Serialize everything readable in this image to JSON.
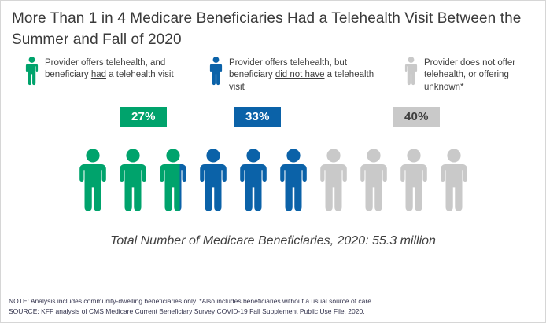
{
  "title": "More Than 1 in 4 Medicare Beneficiaries Had a Telehealth Visit Between the Summer and Fall of 2020",
  "legend": {
    "items": [
      {
        "pre": "Provider offers telehealth, and beneficiary ",
        "underlined": "had",
        "post": " a telehealth visit",
        "color": "#00a36c",
        "pct_label": "27%",
        "badge_text_color": "#ffffff"
      },
      {
        "pre": "Provider offers telehealth, but beneficiary ",
        "underlined": "did not have",
        "post": " a telehealth visit",
        "color": "#0b62a8",
        "pct_label": "33%",
        "badge_text_color": "#ffffff"
      },
      {
        "pre": "Provider does not offer telehealth, or offering unknown*",
        "underlined": "",
        "post": "",
        "color": "#c9c9c9",
        "pct_label": "40%",
        "badge_text_color": "#3f3f3f"
      }
    ]
  },
  "total_label": "Total Number of Medicare Beneficiaries, 2020: 55.3 million",
  "notes": {
    "note": "NOTE: Analysis includes community-dwelling beneficiaries only. *Also includes beneficiaries without a usual source of care.",
    "source": "SOURCE: KFF analysis of CMS Medicare Current Beneficiary Survey COVID-19 Fall Supplement Public Use File, 2020."
  },
  "chart_data": {
    "type": "pictogram",
    "title": "More Than 1 in 4 Medicare Beneficiaries Had a Telehealth Visit Between the Summer and Fall of 2020",
    "icons_total": 10,
    "percent_per_icon": 10,
    "series": [
      {
        "name": "Provider offers telehealth, and beneficiary had a telehealth visit",
        "value_pct": 27,
        "color": "#00a36c"
      },
      {
        "name": "Provider offers telehealth, but beneficiary did not have a telehealth visit",
        "value_pct": 33,
        "color": "#0b62a8"
      },
      {
        "name": "Provider does not offer telehealth, or offering unknown*",
        "value_pct": 40,
        "color": "#c9c9c9"
      }
    ],
    "total_label": "Total Number of Medicare Beneficiaries, 2020: 55.3 million",
    "total_value_million": 55.3
  }
}
